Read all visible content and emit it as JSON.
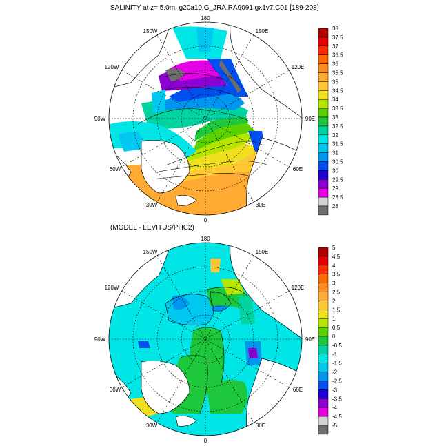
{
  "titles": {
    "top": "SALINITY at z=   5.0m, g20a10.G_JRA.RA9091.gx1v7.C01 [189-208]",
    "bottom": "(MODEL - LEVITUS/PHC2)"
  },
  "longitude_labels": {
    "north": "180",
    "south": "0",
    "left_upper": "150W",
    "left_mid_upper": "120W",
    "left_mid": "90W",
    "left_mid_lower": "60W",
    "left_lower": "30W",
    "right_upper": "150E",
    "right_mid_upper": "120E",
    "right_mid": "90E",
    "right_mid_lower": "60E",
    "right_lower": "30E"
  },
  "colorbar_top": {
    "labels": [
      "38",
      "37.5",
      "37",
      "36.5",
      "36",
      "35.5",
      "35",
      "34.5",
      "34",
      "33.5",
      "33",
      "32.5",
      "32",
      "31.5",
      "31",
      "30.5",
      "30",
      "29.5",
      "29",
      "28.5",
      "28"
    ],
    "colors": [
      "#b00000",
      "#e60000",
      "#ff2a00",
      "#ff6a00",
      "#ff8c1a",
      "#ffaa33",
      "#ffc833",
      "#f0e020",
      "#b4e600",
      "#5ad200",
      "#1ec83c",
      "#00d2a0",
      "#00e6e6",
      "#00c8f0",
      "#0096f0",
      "#0050f0",
      "#1e00d2",
      "#8c00d2",
      "#e600e6",
      "#d2d2d2",
      "#6e6e6e"
    ]
  },
  "colorbar_bottom": {
    "labels": [
      "5",
      "4.5",
      "4",
      "3.5",
      "3",
      "2.5",
      "2",
      "1.5",
      "1",
      "0.5",
      "0",
      "-0.5",
      "-1",
      "-1.5",
      "-2",
      "-2.5",
      "-3",
      "-3.5",
      "-4",
      "-4.5",
      "-5"
    ],
    "colors": [
      "#b00000",
      "#e60000",
      "#ff2a00",
      "#ff6a00",
      "#ff8c1a",
      "#ffaa33",
      "#ffc833",
      "#f0e020",
      "#b4e600",
      "#5ad200",
      "#1ec83c",
      "#00d2a0",
      "#00e6e6",
      "#00c8f0",
      "#0096f0",
      "#0050f0",
      "#1e00d2",
      "#8c00d2",
      "#e600e6",
      "#d2d2d2",
      "#6e6e6e"
    ]
  }
}
